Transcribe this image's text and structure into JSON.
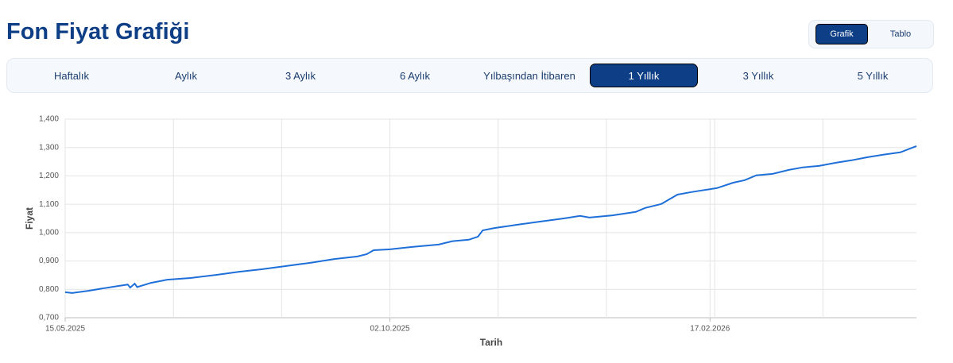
{
  "header": {
    "title": "Fon Fiyat Grafiği"
  },
  "view_toggle": [
    "Grafik",
    "Tablo"
  ],
  "period_tabs": {
    "items": [
      "Haftalık",
      "Aylık",
      "3 Aylık",
      "6 Aylık",
      "Yılbaşından İtibaren",
      "1 Yıllık",
      "3 Yıllık",
      "5 Yıllık"
    ],
    "active": "1 Yıllık"
  },
  "chart_data": {
    "type": "line",
    "x_label": "Tarih",
    "y_label": "Fiyat",
    "grid": true,
    "xlim": [
      "15.05.2025",
      "17.05.2026"
    ],
    "xticks": [
      "15.05.2025",
      "02.10.2025",
      "17.02.2026"
    ],
    "ylim": [
      0.7,
      1.4
    ],
    "yticks": [
      {
        "value": 0.7,
        "label": "0,700"
      },
      {
        "value": 0.8,
        "label": "0,800"
      },
      {
        "value": 0.9,
        "label": "0,900"
      },
      {
        "value": 1.0,
        "label": "1,000"
      },
      {
        "value": 1.1,
        "label": "1,100"
      },
      {
        "value": 1.2,
        "label": "1,200"
      },
      {
        "value": 1.3,
        "label": "1,300"
      },
      {
        "value": 1.4,
        "label": "1,400"
      }
    ],
    "x": [
      "15.05.2025",
      "18.05.2025",
      "25.05.2025",
      "31.05.2025",
      "07.06.2025",
      "11.06.2025",
      "12.06.2025",
      "14.06.2025",
      "15.06.2025",
      "21.06.2025",
      "28.06.2025",
      "08.07.2025",
      "19.07.2025",
      "29.07.2025",
      "08.08.2025",
      "18.08.2025",
      "29.08.2025",
      "08.09.2025",
      "18.09.2025",
      "22.09.2025",
      "25.09.2025",
      "02.10.2025",
      "12.10.2025",
      "23.10.2025",
      "29.10.2025",
      "05.11.2025",
      "09.11.2025",
      "11.11.2025",
      "16.11.2025",
      "26.11.2025",
      "06.12.2025",
      "16.12.2025",
      "23.12.2025",
      "27.12.2025",
      "06.01.2026",
      "16.01.2026",
      "20.01.2026",
      "27.01.2026",
      "03.02.2026",
      "09.02.2026",
      "20.02.2026",
      "27.02.2026",
      "04.03.2026",
      "09.03.2026",
      "16.03.2026",
      "23.03.2026",
      "29.03.2026",
      "05.04.2026",
      "12.04.2026",
      "19.04.2026",
      "26.04.2026",
      "03.05.2026",
      "10.05.2026",
      "17.05.2026"
    ],
    "series": [
      {
        "name": "Fiyat",
        "color": "#1f6fd8",
        "values": [
          0.79,
          0.787,
          0.795,
          0.803,
          0.812,
          0.817,
          0.806,
          0.82,
          0.808,
          0.823,
          0.834,
          0.84,
          0.851,
          0.862,
          0.871,
          0.882,
          0.894,
          0.907,
          0.916,
          0.924,
          0.938,
          0.941,
          0.95,
          0.958,
          0.97,
          0.975,
          0.986,
          1.008,
          1.016,
          1.028,
          1.039,
          1.05,
          1.059,
          1.053,
          1.061,
          1.073,
          1.087,
          1.101,
          1.134,
          1.143,
          1.157,
          1.176,
          1.185,
          1.202,
          1.207,
          1.221,
          1.23,
          1.235,
          1.246,
          1.255,
          1.266,
          1.275,
          1.283,
          1.305
        ]
      }
    ]
  }
}
